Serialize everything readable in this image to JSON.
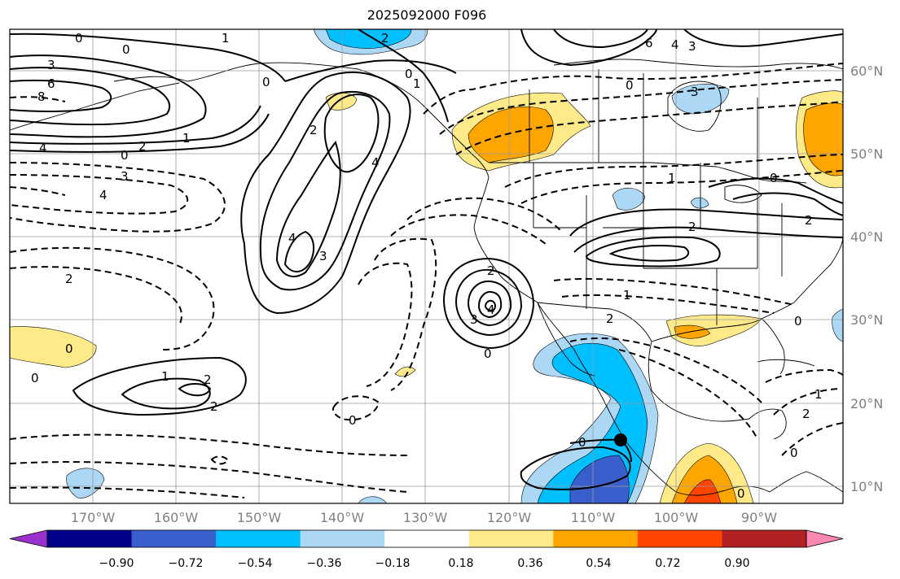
{
  "title": "2025092000 F096",
  "map": {
    "lon_labels": [
      "170°W",
      "160°W",
      "150°W",
      "140°W",
      "130°W",
      "120°W",
      "110°W",
      "100°W",
      "90°W"
    ],
    "lat_labels": [
      "60°N",
      "50°N",
      "40°N",
      "30°N",
      "20°N",
      "10°N"
    ],
    "grid": true
  },
  "colorbar": {
    "ticks": [
      "−0.90",
      "−0.72",
      "−0.54",
      "−0.36",
      "−0.18",
      "0.18",
      "0.36",
      "0.54",
      "0.72",
      "0.90"
    ],
    "colors": [
      "#9932cc",
      "#00008b",
      "#3a5fcd",
      "#00bfff",
      "#add8f5",
      "#ffffff",
      "#ffea8a",
      "#ffa500",
      "#ff4500",
      "#b22222",
      "#ff88b0"
    ]
  },
  "contour_labels": [
    {
      "text": "0",
      "name": "label-0-a"
    },
    {
      "text": "0",
      "name": "label-0-b"
    },
    {
      "text": "3",
      "name": "label-3-a"
    },
    {
      "text": "6",
      "name": "label-6-a"
    },
    {
      "text": "8",
      "name": "label-8-a"
    },
    {
      "text": "4",
      "name": "label-4-a"
    },
    {
      "text": "0",
      "name": "label-0-c"
    },
    {
      "text": "2",
      "name": "label-2-a"
    },
    {
      "text": "1",
      "name": "label-1-a"
    },
    {
      "text": "3",
      "name": "label-3-b"
    },
    {
      "text": "4",
      "name": "label-4-b"
    },
    {
      "text": "2",
      "name": "label-2-b"
    },
    {
      "text": "1",
      "name": "label-1-b"
    },
    {
      "text": "0",
      "name": "label-0-d"
    },
    {
      "text": "2",
      "name": "label-2-c"
    },
    {
      "text": "4",
      "name": "label-4-c"
    },
    {
      "text": "3",
      "name": "label-3-c"
    },
    {
      "text": "4",
      "name": "label-4-d"
    },
    {
      "text": "2",
      "name": "label-2-d"
    },
    {
      "text": "0",
      "name": "label-0-e"
    },
    {
      "text": "1",
      "name": "label-1-c"
    },
    {
      "text": "2",
      "name": "label-2-e"
    },
    {
      "text": "0",
      "name": "label-0-f"
    },
    {
      "text": "0",
      "name": "label-0-g"
    },
    {
      "text": "1",
      "name": "label-1-d"
    },
    {
      "text": "2",
      "name": "label-2-f"
    },
    {
      "text": "0",
      "name": "label-0-h"
    },
    {
      "text": "2",
      "name": "label-2-g"
    },
    {
      "text": "3",
      "name": "label-3-d"
    },
    {
      "text": "4",
      "name": "label-4-e"
    },
    {
      "text": "0",
      "name": "label-0-i"
    },
    {
      "text": "6",
      "name": "label-6-b"
    },
    {
      "text": "4",
      "name": "label-4-f"
    },
    {
      "text": "3",
      "name": "label-3-e"
    },
    {
      "text": "0",
      "name": "label-0-j"
    },
    {
      "text": "3",
      "name": "label-3-f"
    },
    {
      "text": "1",
      "name": "label-1-e"
    },
    {
      "text": "2",
      "name": "label-2-h"
    },
    {
      "text": "0",
      "name": "label-0-k"
    },
    {
      "text": "2",
      "name": "label-2-i"
    },
    {
      "text": "1",
      "name": "label-1-f"
    },
    {
      "text": "2",
      "name": "label-2-j"
    },
    {
      "text": "0",
      "name": "label-0-l"
    },
    {
      "text": "0",
      "name": "label-0-m"
    },
    {
      "text": "0",
      "name": "label-0-n"
    },
    {
      "text": "2",
      "name": "label-2-k"
    },
    {
      "text": "1",
      "name": "label-1-g"
    },
    {
      "text": "0",
      "name": "label-0-o"
    }
  ]
}
